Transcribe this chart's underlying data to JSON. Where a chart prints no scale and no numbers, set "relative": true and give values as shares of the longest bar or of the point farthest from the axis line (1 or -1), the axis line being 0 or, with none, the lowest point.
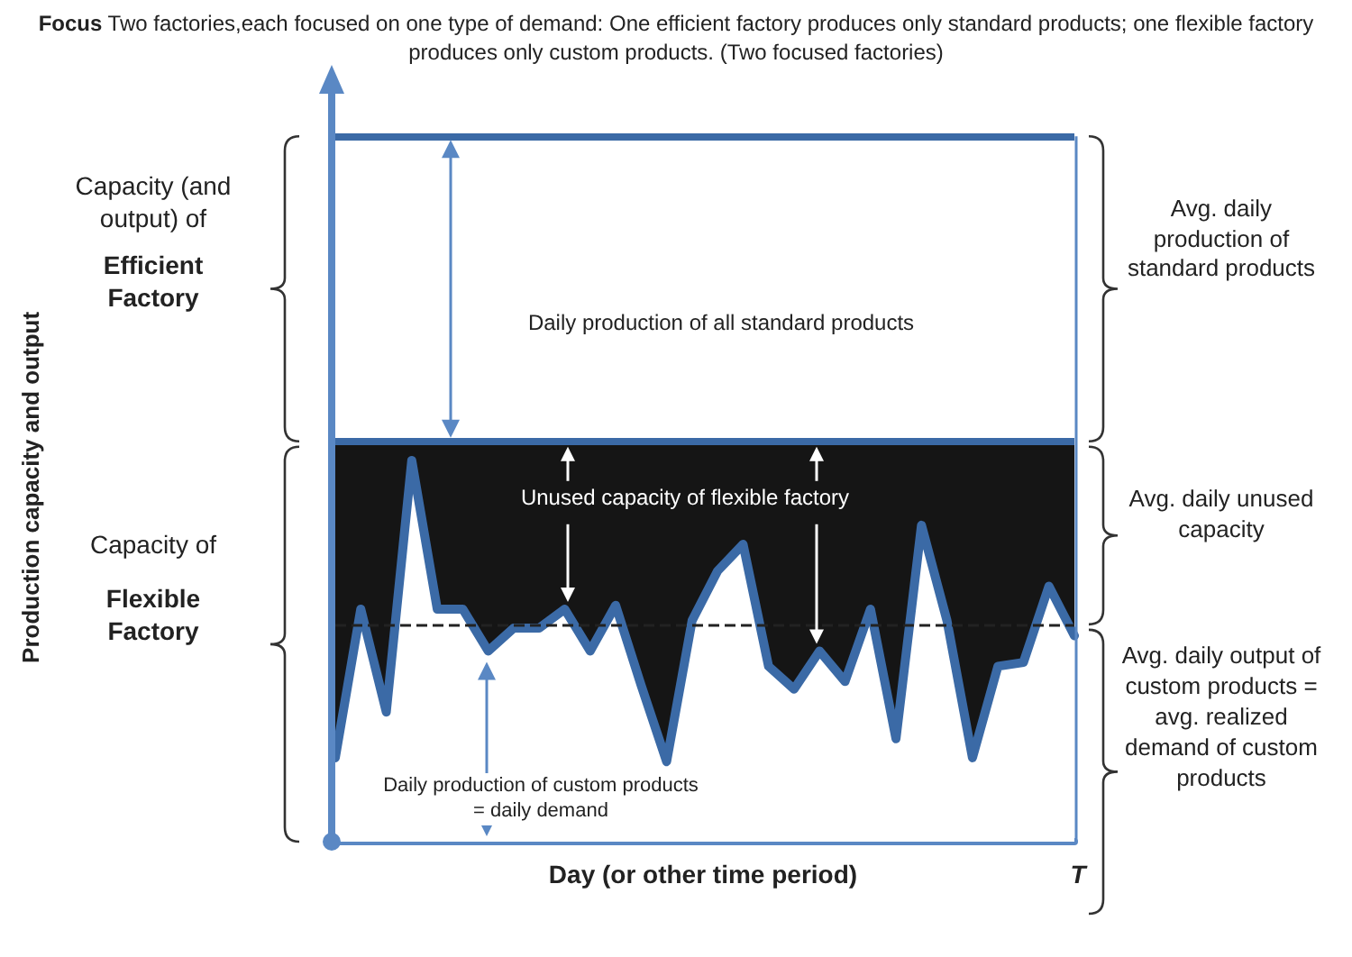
{
  "chart_data": {
    "type": "area",
    "relative": true,
    "title": "Focus",
    "subtitle": "Two factories,each focused on one type of demand: One efficient factory produces only standard products; one flexible factory produces only custom products. (Two focused factories)",
    "xlabel": "Day (or other time period)",
    "categories": [
      null,
      null,
      null,
      null,
      null,
      null,
      null,
      null,
      null,
      null,
      null,
      null,
      null,
      null,
      null,
      null,
      null,
      null,
      null,
      null,
      null,
      null,
      null,
      null,
      null,
      null,
      null,
      null,
      null,
      null
    ],
    "series": [
      {
        "color": "#3b6aa6",
        "values": [
          0.22,
          0.61,
          0.34,
          1,
          0.61,
          0.61,
          0.5,
          0.56,
          0.56,
          0.61,
          0.5,
          0.62,
          0.41,
          0.21,
          0.58,
          0.71,
          0.78,
          0.46,
          0.4,
          0.5,
          0.42,
          0.61,
          0.27,
          0.83,
          0.58,
          0.22,
          0.46,
          0.47,
          0.67,
          0.54
        ]
      }
    ],
    "ref_lines": [
      {
        "axis": "y",
        "value": 1.85,
        "color": "#3b6aa6"
      },
      {
        "axis": "y",
        "value": 1.05,
        "color": "#3b6aa6"
      },
      {
        "axis": "y",
        "value": 0.57,
        "color": "#222222",
        "line_style": "dashed"
      }
    ],
    "annotations": [
      "Capacity (and output) of",
      "Efficient Factory",
      "Capacity of",
      "Flexible Factory",
      "Daily production of all standard products",
      "Unused capacity of flexible factory",
      "Daily production of custom products = daily demand",
      "Avg. daily production of standard products",
      "Avg. daily unused capacity",
      "Avg. daily output of custom products = avg. realized demand of custom products",
      "T",
      "Production capacity and output"
    ],
    "bands": [
      {
        "axis": "y",
        "from": 0,
        "to": 1.05,
        "color": "#151515"
      }
    ],
    "grid": false,
    "marker": "none",
    "line_style": "solid"
  }
}
